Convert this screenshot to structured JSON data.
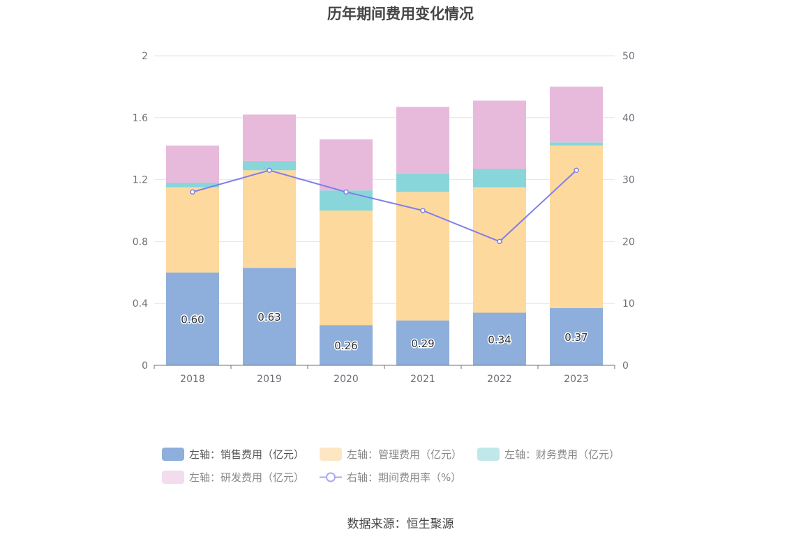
{
  "chart_data": {
    "type": "bar",
    "title": "历年期间费用变化情况",
    "categories": [
      "2018",
      "2019",
      "2020",
      "2021",
      "2022",
      "2023"
    ],
    "stacked": true,
    "left_axis": {
      "ylim": [
        0,
        2
      ],
      "ticks": [
        "0",
        "0.4",
        "0.8",
        "1.2",
        "1.6",
        "2"
      ]
    },
    "right_axis": {
      "ylim": [
        0,
        50
      ],
      "ticks": [
        "0",
        "10",
        "20",
        "30",
        "40",
        "50"
      ]
    },
    "series": [
      {
        "name": "左轴：销售费用（亿元）",
        "type": "bar",
        "axis": "left",
        "color": "#8eaedb",
        "values": [
          0.6,
          0.63,
          0.26,
          0.29,
          0.34,
          0.37
        ],
        "labels": [
          "0.60",
          "0.63",
          "0.26",
          "0.29",
          "0.34",
          "0.37"
        ]
      },
      {
        "name": "左轴：管理费用（亿元）",
        "type": "bar",
        "axis": "left",
        "color": "#fed99d",
        "values": [
          0.55,
          0.63,
          0.74,
          0.83,
          0.81,
          1.05
        ]
      },
      {
        "name": "左轴：财务费用（亿元）",
        "type": "bar",
        "axis": "left",
        "color": "#89d6da",
        "values": [
          0.03,
          0.06,
          0.13,
          0.12,
          0.12,
          0.02
        ]
      },
      {
        "name": "左轴：研发费用（亿元）",
        "type": "bar",
        "axis": "left",
        "color": "#e7badb",
        "values": [
          0.24,
          0.3,
          0.33,
          0.43,
          0.44,
          0.36
        ]
      },
      {
        "name": "右轴：期间费用率（%）",
        "type": "line",
        "axis": "right",
        "color": "#7f7fe9",
        "values": [
          28.0,
          31.5,
          28.0,
          25.0,
          20.0,
          31.5
        ]
      }
    ],
    "grid": true,
    "legend_position": "bottom"
  },
  "source": "数据来源：恒生聚源"
}
